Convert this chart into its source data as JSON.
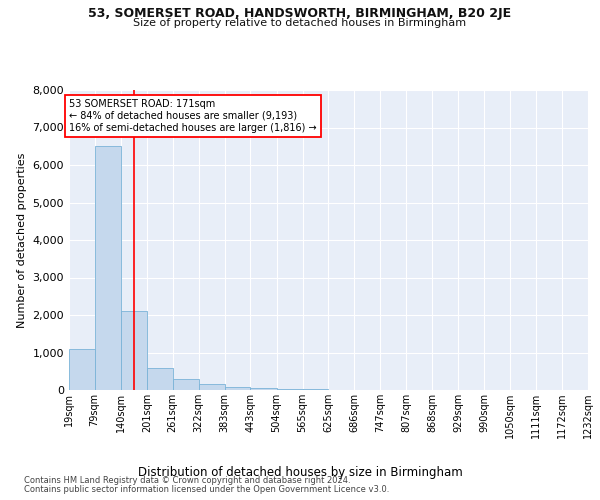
{
  "title1": "53, SOMERSET ROAD, HANDSWORTH, BIRMINGHAM, B20 2JE",
  "title2": "Size of property relative to detached houses in Birmingham",
  "xlabel": "Distribution of detached houses by size in Birmingham",
  "ylabel": "Number of detached properties",
  "bin_edges": [
    19,
    79,
    140,
    201,
    261,
    322,
    383,
    443,
    504,
    565,
    625,
    686,
    747,
    807,
    868,
    929,
    990,
    1050,
    1111,
    1172,
    1232
  ],
  "bin_labels": [
    "19sqm",
    "79sqm",
    "140sqm",
    "201sqm",
    "261sqm",
    "322sqm",
    "383sqm",
    "443sqm",
    "504sqm",
    "565sqm",
    "625sqm",
    "686sqm",
    "747sqm",
    "807sqm",
    "868sqm",
    "929sqm",
    "990sqm",
    "1050sqm",
    "1111sqm",
    "1172sqm",
    "1232sqm"
  ],
  "bar_heights": [
    1100,
    6500,
    2100,
    600,
    300,
    150,
    80,
    55,
    30,
    20,
    10,
    5,
    3,
    2,
    1,
    1,
    0,
    0,
    0,
    0
  ],
  "bar_color": "#c5d8ed",
  "bar_edge_color": "#7ab3d8",
  "property_line_x": 171,
  "annotation_text_line1": "53 SOMERSET ROAD: 171sqm",
  "annotation_text_line2": "← 84% of detached houses are smaller (9,193)",
  "annotation_text_line3": "16% of semi-detached houses are larger (1,816) →",
  "ylim": [
    0,
    8000
  ],
  "yticks": [
    0,
    1000,
    2000,
    3000,
    4000,
    5000,
    6000,
    7000,
    8000
  ],
  "background_color": "#e8eef8",
  "footnote1": "Contains HM Land Registry data © Crown copyright and database right 2024.",
  "footnote2": "Contains public sector information licensed under the Open Government Licence v3.0."
}
